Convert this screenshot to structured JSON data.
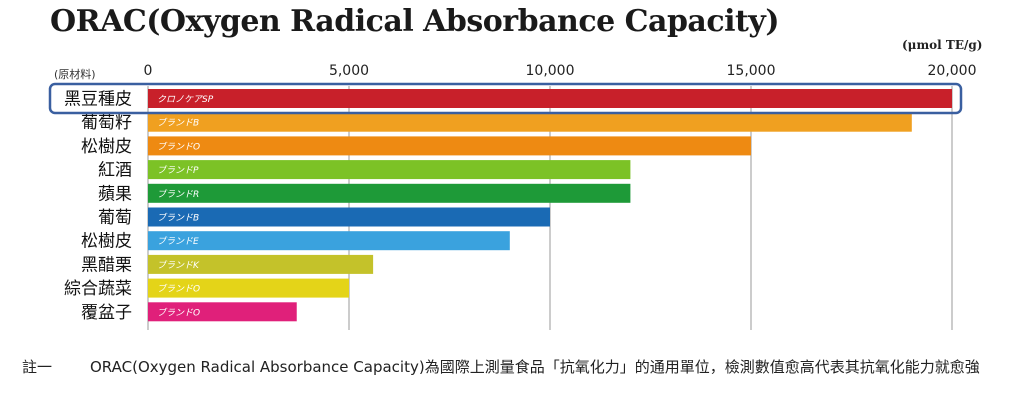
{
  "chart_data": {
    "type": "bar",
    "orientation": "horizontal",
    "title": "ORAC(Oxygen Radical Absorbance Capacity)",
    "unit": "(μmol TE/g)",
    "category_header": "(原材料)",
    "xlim": [
      0,
      20000
    ],
    "xticks": [
      0,
      5000,
      10000,
      15000,
      20000
    ],
    "xtick_labels": [
      "0",
      "5,000",
      "10,000",
      "15,000",
      "20,000"
    ],
    "grid": "vertical",
    "categories": [
      "黑豆種皮",
      "葡萄籽",
      "松樹皮",
      "紅酒",
      "蘋果",
      "葡萄",
      "松樹皮",
      "黑醋栗",
      "綜合蔬菜",
      "覆盆子"
    ],
    "bar_labels": [
      "クロノケアSP",
      "ブランドB",
      "ブランドO",
      "ブランドP",
      "ブランドR",
      "ブランドB",
      "ブランドE",
      "ブランドK",
      "ブランドO",
      "ブランドO"
    ],
    "values": [
      20000,
      19000,
      15000,
      12000,
      12000,
      10000,
      9000,
      5600,
      5000,
      3700
    ],
    "colors": [
      "#c8202a",
      "#f0a020",
      "#ee8a12",
      "#7cc226",
      "#1e9a38",
      "#1a6ab4",
      "#3aa2de",
      "#c4c22a",
      "#e4d418",
      "#e0207a"
    ],
    "highlighted_index": 0,
    "highlight_color": "#3a5fa0"
  },
  "footnote": {
    "marker": "註一",
    "text": "ORAC(Oxygen Radical Absorbance Capacity)為國際上測量食品「抗氧化力」的通用單位，檢測數值愈高代表其抗氧化能力就愈強"
  }
}
